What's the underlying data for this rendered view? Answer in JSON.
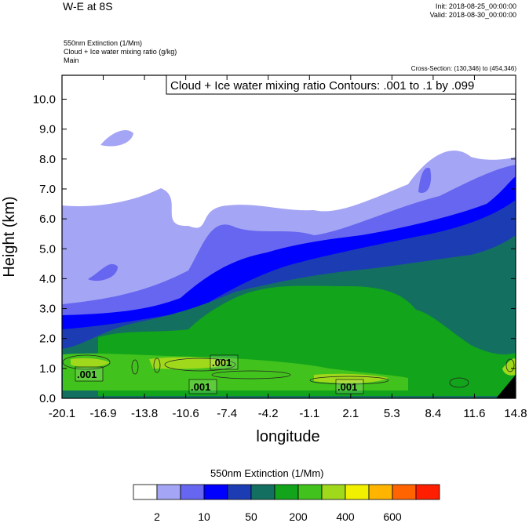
{
  "header": {
    "title": "W-E at 8S",
    "init": "Init: 2018-08-25_00:00:00",
    "valid": "Valid: 2018-08-30_00:00:00",
    "var1": "550nm Extinction   (1/Mm)",
    "var2": "Cloud + Ice water mixing ratio   (g/kg)",
    "var3": "Main",
    "cross_section": "Cross-Section: (130,346) to (454,346)"
  },
  "chart_data": {
    "type": "contour",
    "xlabel": "longitude",
    "ylabel": "Height (km)",
    "xlim": [
      -20.1,
      14.8
    ],
    "ylim": [
      0.0,
      10.8
    ],
    "x_ticks": [
      "-20.1",
      "-16.9",
      "-13.8",
      "-10.6",
      "-7.4",
      "-4.2",
      "-1.1",
      "2.1",
      "5.3",
      "8.4",
      "11.6",
      "14.8"
    ],
    "y_ticks": [
      "0.0",
      "1.0",
      "2.0",
      "3.0",
      "4.0",
      "5.0",
      "6.0",
      "7.0",
      "8.0",
      "9.0",
      "10.0"
    ],
    "contour_annotation": "Cloud + Ice water mixing ratio Contours: .001 to .1 by .099",
    "contour_labels": [
      ".001",
      ".001",
      ".001",
      ".001"
    ],
    "colorbar": {
      "title": "550nm Extinction  (1/Mm)",
      "colors": [
        "#ffffff",
        "#a5a5f5",
        "#6666f0",
        "#0000ff",
        "#1c3cb4",
        "#137060",
        "#12a41b",
        "#42c21c",
        "#a0d81c",
        "#f0f000",
        "#ffb400",
        "#ff6400",
        "#ff1e00"
      ],
      "tick_labels": [
        "2",
        "10",
        "50",
        "200",
        "400",
        "600"
      ]
    }
  }
}
